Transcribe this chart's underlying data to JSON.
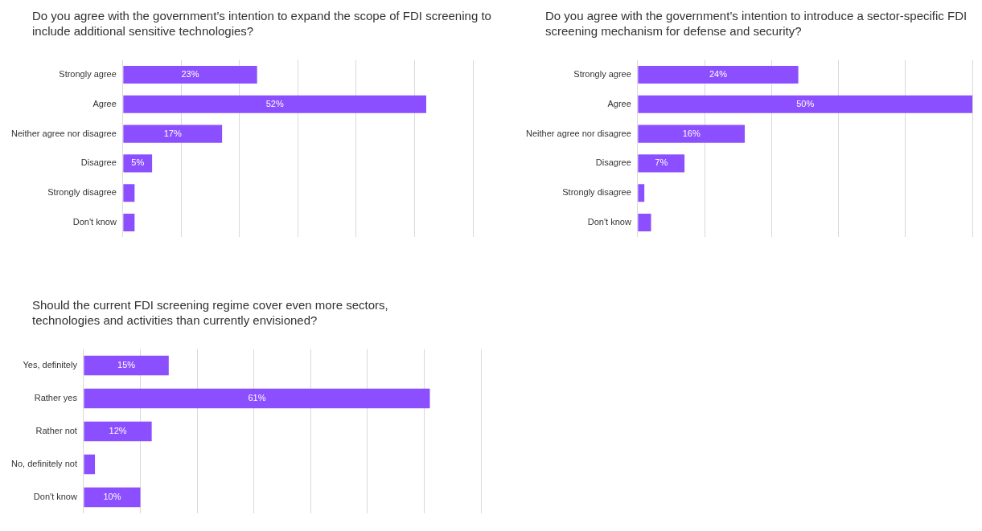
{
  "chart_data": [
    {
      "type": "bar",
      "orientation": "horizontal",
      "title": "Do you agree with the government’s intention to expand the scope of FDI screening to include additional sensitive technologies?",
      "categories": [
        "Strongly agree",
        "Agree",
        "Neither agree nor disagree",
        "Disagree",
        "Strongly disagree",
        "Don't know"
      ],
      "values": [
        23,
        52,
        17,
        5,
        2,
        2
      ],
      "value_labels": [
        "23%",
        "52%",
        "17%",
        "5%",
        null,
        null
      ],
      "color": "#8c4fff",
      "xlim": [
        0,
        60
      ],
      "xticks": [
        {
          "value": 0,
          "label": null
        },
        {
          "value": 10,
          "label": null
        },
        {
          "value": 20,
          "label": null
        },
        {
          "value": 30,
          "label": null
        },
        {
          "value": 40,
          "label": null
        },
        {
          "value": 50,
          "label": null
        },
        {
          "value": 60,
          "label": null
        }
      ],
      "grid": "x",
      "tick_labels": "y",
      "legend": false
    },
    {
      "type": "bar",
      "orientation": "horizontal",
      "title": "Do you agree with the government’s intention to introduce a sector-specific FDI screening mechanism for defense and security?",
      "categories": [
        "Strongly agree",
        "Agree",
        "Neither agree nor disagree",
        "Disagree",
        "Strongly disagree",
        "Don't know"
      ],
      "values": [
        24,
        50,
        16,
        7,
        1,
        2
      ],
      "value_labels": [
        "24%",
        "50%",
        "16%",
        "7%",
        null,
        null
      ],
      "color": "#8c4fff",
      "xlim": [
        0,
        50
      ],
      "xticks": [
        {
          "value": 0,
          "label": null
        },
        {
          "value": 10,
          "label": null
        },
        {
          "value": 20,
          "label": null
        },
        {
          "value": 30,
          "label": null
        },
        {
          "value": 40,
          "label": null
        },
        {
          "value": 50,
          "label": null
        }
      ],
      "grid": "x",
      "tick_labels": "y",
      "legend": false
    },
    {
      "type": "bar",
      "orientation": "horizontal",
      "title": "Should the current FDI screening regime cover even more sectors, technologies and activities than currently envisioned?",
      "categories": [
        "Yes, definitely",
        "Rather yes",
        "Rather not",
        "No, definitely not",
        "Don't know"
      ],
      "values": [
        15,
        61,
        12,
        2,
        10
      ],
      "value_labels": [
        "15%",
        "61%",
        "12%",
        null,
        "10%"
      ],
      "color": "#8c4fff",
      "xlim": [
        0,
        70
      ],
      "xticks": [
        {
          "value": 0,
          "label": null
        },
        {
          "value": 10,
          "label": null
        },
        {
          "value": 20,
          "label": null
        },
        {
          "value": 30,
          "label": null
        },
        {
          "value": 40,
          "label": null
        },
        {
          "value": 50,
          "label": null
        },
        {
          "value": 60,
          "label": null
        },
        {
          "value": 70,
          "label": null
        }
      ],
      "grid": "x",
      "tick_labels": "y",
      "legend": false
    }
  ]
}
